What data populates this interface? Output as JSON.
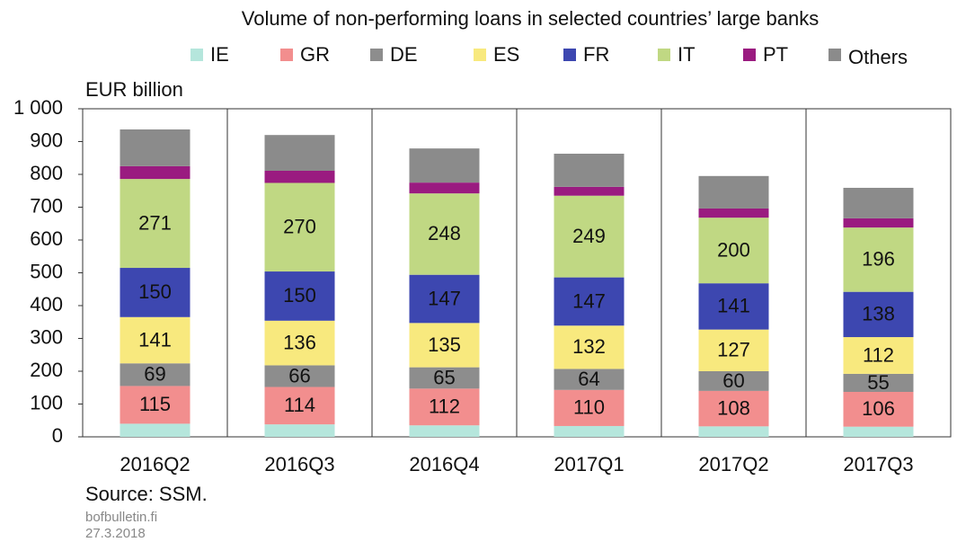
{
  "chart_data": {
    "type": "stacked_bar",
    "title": "Volume of non-performing loans in selected countries’ large banks",
    "y_axis_label": "EUR billion",
    "categories": [
      "2016Q2",
      "2016Q3",
      "2016Q4",
      "2017Q1",
      "2017Q2",
      "2017Q3"
    ],
    "series": [
      {
        "name": "IE",
        "color": "#b5e6dc",
        "data_labels": false,
        "values": [
          40,
          38,
          35,
          33,
          32,
          31
        ]
      },
      {
        "name": "GR",
        "color": "#f28e8e",
        "data_labels": true,
        "values": [
          115,
          114,
          112,
          110,
          108,
          106
        ]
      },
      {
        "name": "DE",
        "color": "#8d8d8d",
        "data_labels": true,
        "values": [
          69,
          66,
          65,
          64,
          60,
          55
        ]
      },
      {
        "name": "ES",
        "color": "#f8e97e",
        "data_labels": true,
        "values": [
          141,
          136,
          135,
          132,
          127,
          112
        ]
      },
      {
        "name": "FR",
        "color": "#3d47b0",
        "data_labels": true,
        "values": [
          150,
          150,
          147,
          147,
          141,
          138
        ]
      },
      {
        "name": "IT",
        "color": "#c0d883",
        "data_labels": true,
        "values": [
          271,
          270,
          248,
          249,
          200,
          196
        ]
      },
      {
        "name": "PT",
        "color": "#9a1b80",
        "data_labels": false,
        "values": [
          39,
          37,
          33,
          27,
          28,
          28
        ]
      },
      {
        "name": "Others",
        "color": "#8b8b8b",
        "data_labels": false,
        "values": [
          112,
          109,
          104,
          101,
          99,
          93
        ]
      }
    ],
    "ylim": [
      0,
      1000
    ],
    "yticks": [
      0,
      100,
      200,
      300,
      400,
      500,
      600,
      700,
      800,
      900,
      {
        "value": 1000,
        "label": "1 000"
      }
    ],
    "legend": "top",
    "source": "Source: SSM.",
    "site": "bofbulletin.fi",
    "date": "27.3.2018"
  }
}
